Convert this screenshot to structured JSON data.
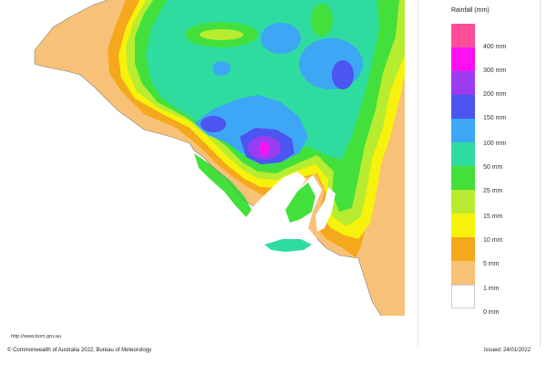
{
  "legend": {
    "title": "Rainfall (mm)",
    "items": [
      {
        "label": "400 mm",
        "color": "#ff4d9a"
      },
      {
        "label": "300 mm",
        "color": "#ff10f0"
      },
      {
        "label": "200 mm",
        "color": "#9b3cf0"
      },
      {
        "label": "150 mm",
        "color": "#4b55f0"
      },
      {
        "label": "100 mm",
        "color": "#3da6f5"
      },
      {
        "label": "50 mm",
        "color": "#2fdca0"
      },
      {
        "label": "25 mm",
        "color": "#43e03c"
      },
      {
        "label": "15 mm",
        "color": "#b8ec30"
      },
      {
        "label": "10 mm",
        "color": "#f7f20c"
      },
      {
        "label": "5 mm",
        "color": "#f5a81c"
      },
      {
        "label": "1 mm",
        "color": "#f8c178"
      },
      {
        "label": "0 mm",
        "color": "#ffffff"
      }
    ]
  },
  "footer": {
    "url": "http://www.bom.gov.au",
    "copyright": "© Commonwealth of Australia 2022, Bureau of Meteorology",
    "issued": "Issued: 24/01/2022"
  }
}
